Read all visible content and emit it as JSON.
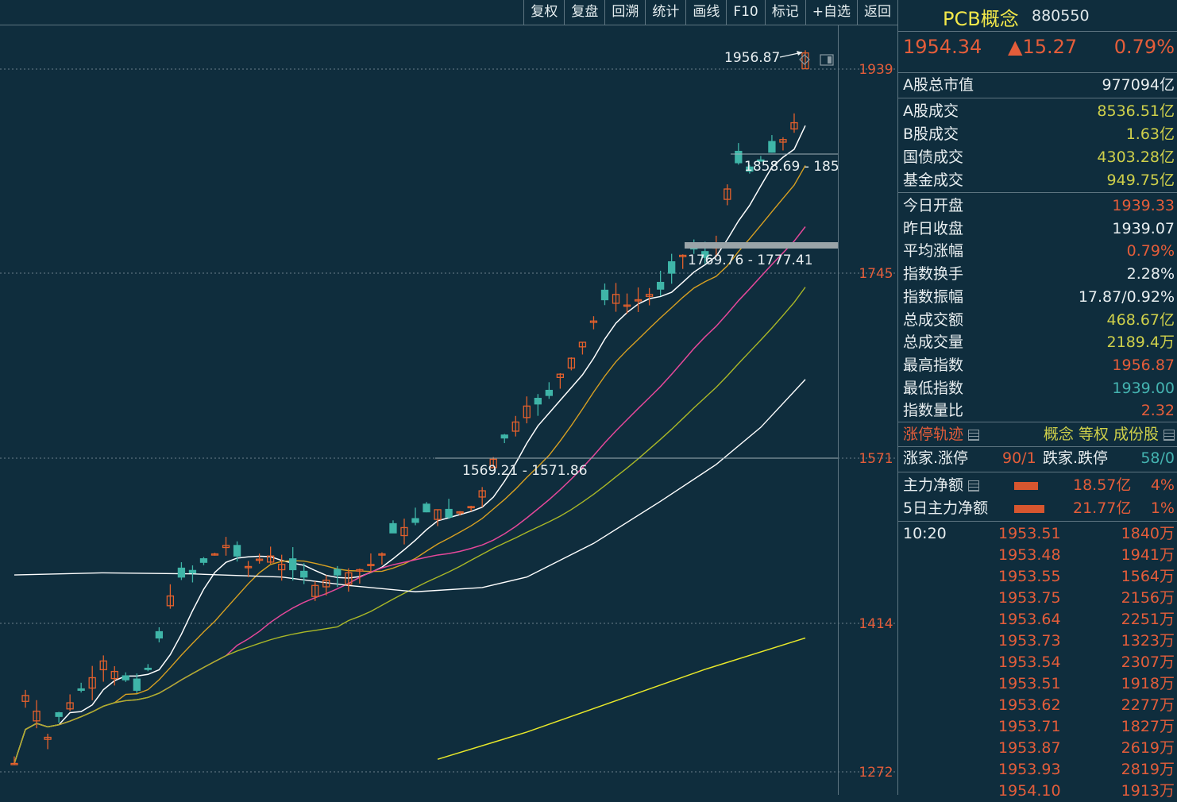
{
  "toolbar": {
    "buttons": [
      "复权",
      "复盘",
      "回溯",
      "统计",
      "画线",
      "F10",
      "标记",
      "+自选",
      "返回"
    ]
  },
  "chart_data": {
    "type": "candlestick",
    "y_axis_labels": [
      "1939",
      "1745",
      "1571",
      "1414",
      "1272"
    ],
    "ylim": [
      1250,
      1990
    ],
    "annotations": [
      {
        "text": "1956.87",
        "kind": "high-marker"
      },
      {
        "text": "1858.69 - 185",
        "kind": "range"
      },
      {
        "text": "1769.76 - 1777.41",
        "kind": "range"
      },
      {
        "text": "1569.21 - 1571.86",
        "kind": "range"
      }
    ],
    "candle_count": 72,
    "last_high": 1956.87,
    "last_low": 1939.0,
    "last_open": 1939.33,
    "last_close": 1954.34,
    "colors": {
      "up": "#e4602c",
      "down": "#3fb5a8",
      "ma5": "#ffffff",
      "ma10": "#d7a022",
      "ma20": "#e5489a",
      "ma30": "#a9b727",
      "ma60": "#ffffff",
      "ma250": "#e8e82a"
    }
  },
  "panel": {
    "name": "PCB概念",
    "code": "880550",
    "price": "1954.34",
    "change": "▲15.27",
    "pct": "0.79%",
    "market_cap_label": "A股总市值",
    "market_cap_value": "977094亿",
    "turnover": [
      {
        "label": "A股成交",
        "value": "8536.51亿"
      },
      {
        "label": "B股成交",
        "value": "1.63亿"
      },
      {
        "label": "国债成交",
        "value": "4303.28亿"
      },
      {
        "label": "基金成交",
        "value": "949.75亿"
      }
    ],
    "stats": [
      {
        "label": "今日开盘",
        "value": "1939.33",
        "color": "red"
      },
      {
        "label": "昨日收盘",
        "value": "1939.07",
        "color": "wht"
      },
      {
        "label": "平均涨幅",
        "value": "0.79%",
        "color": "red"
      },
      {
        "label": "指数换手",
        "value": "2.28%",
        "color": "wht"
      },
      {
        "label": "指数振幅",
        "value": "17.87/0.92%",
        "color": "wht"
      },
      {
        "label": "总成交额",
        "value": "468.67亿",
        "color": "yel"
      },
      {
        "label": "总成交量",
        "value": "2189.4万",
        "color": "yel"
      },
      {
        "label": "最高指数",
        "value": "1956.87",
        "color": "red"
      },
      {
        "label": "最低指数",
        "value": "1939.00",
        "color": "cyn"
      },
      {
        "label": "指数量比",
        "value": "2.32",
        "color": "red"
      }
    ],
    "limit_track_label": "涨停轨迹",
    "limit_links": [
      "概念",
      "等权",
      "成份股"
    ],
    "limit_up_label": "涨家.涨停",
    "limit_up_value": "90/1",
    "limit_down_label": "跌家.跌停",
    "limit_down_value": "58/0",
    "main_net_label": "主力净额",
    "main_net_value": "18.57亿",
    "main_net_pct": "4%",
    "main_net5_label": "5日主力净额",
    "main_net5_value": "21.77亿",
    "main_net5_pct": "1%",
    "tick_time": "10:20",
    "ticks": [
      {
        "p": "1953.51",
        "v": "1840万"
      },
      {
        "p": "1953.48",
        "v": "1941万"
      },
      {
        "p": "1953.55",
        "v": "1564万"
      },
      {
        "p": "1953.75",
        "v": "2156万"
      },
      {
        "p": "1953.64",
        "v": "2251万"
      },
      {
        "p": "1953.73",
        "v": "1323万"
      },
      {
        "p": "1953.54",
        "v": "2307万"
      },
      {
        "p": "1953.51",
        "v": "1918万"
      },
      {
        "p": "1953.62",
        "v": "2277万"
      },
      {
        "p": "1953.71",
        "v": "1827万"
      },
      {
        "p": "1953.87",
        "v": "2619万"
      },
      {
        "p": "1953.93",
        "v": "2819万"
      },
      {
        "p": "1954.10",
        "v": "1913万"
      }
    ]
  }
}
